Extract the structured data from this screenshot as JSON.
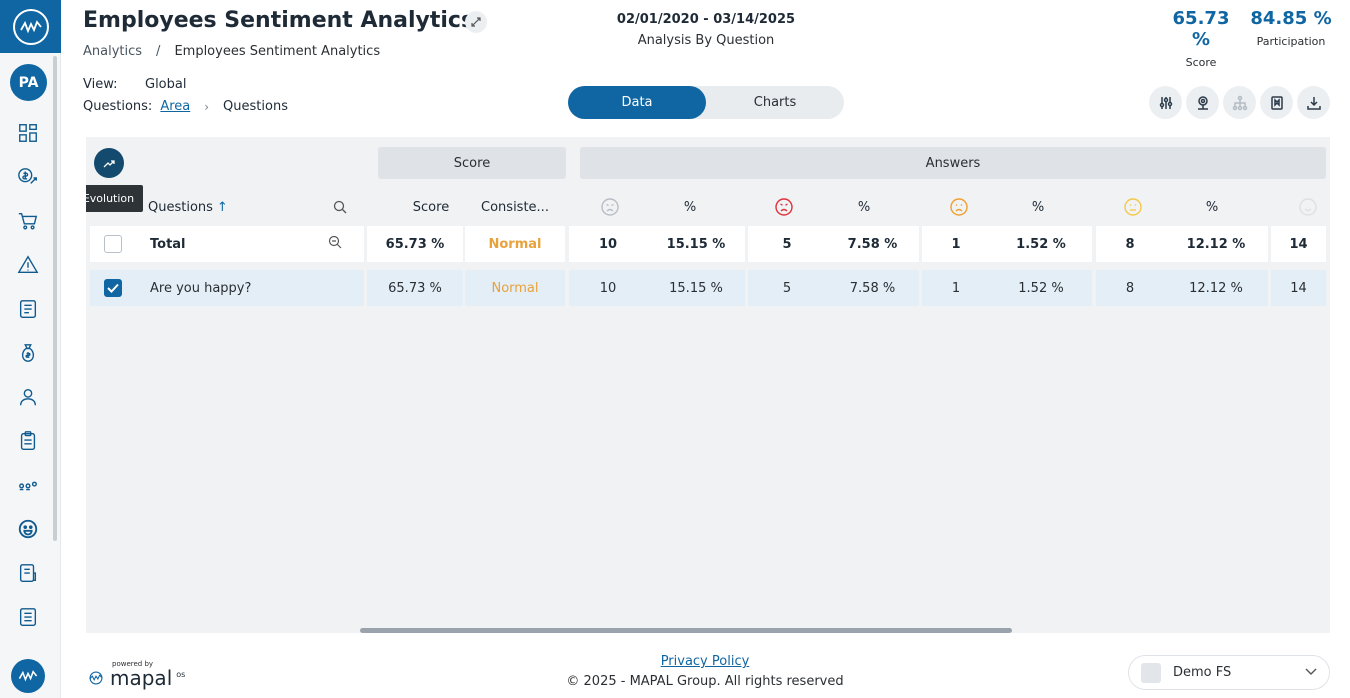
{
  "sidebar": {
    "avatar": "PA",
    "items": [
      "dashboard-icon",
      "sales-icon",
      "cart-icon",
      "alert-icon",
      "checklist-icon",
      "money-bag-icon",
      "user-icon",
      "clipboard-icon",
      "training-icon",
      "smiley-icon",
      "report-icon",
      "document-icon"
    ]
  },
  "header": {
    "title": "Employees Sentiment Analytics",
    "breadcrumb": [
      "Analytics",
      "/",
      "Employees Sentiment Analytics"
    ],
    "date_range": "02/01/2020 - 03/14/2025",
    "subtitle": "Analysis By Question",
    "kpis": [
      {
        "value": "65.73 %",
        "label": "Score"
      },
      {
        "value": "84.85 %",
        "label": "Participation"
      }
    ]
  },
  "filters": {
    "view_label": "View:",
    "view_value": "Global",
    "questions_label": "Questions:",
    "questions_link": "Area",
    "questions_current": "Questions"
  },
  "toggle": {
    "data": "Data",
    "charts": "Charts",
    "active": "Data"
  },
  "toolbar": [
    "filters-icon",
    "location-icon",
    "hierarchy-icon",
    "bookmark-icon",
    "download-icon"
  ],
  "table": {
    "groups": {
      "score": "Score",
      "answers": "Answers"
    },
    "tooltip": "Evolution",
    "headers": {
      "questions": "Questions",
      "sort_arrow": "↑",
      "score": "Score",
      "consistency": "Consiste...",
      "pct": "%"
    },
    "total": {
      "label": "Total",
      "score": "65.73 %",
      "consistency": "Normal",
      "cols": [
        "10",
        "15.15 %",
        "5",
        "7.58 %",
        "1",
        "1.52 %",
        "8",
        "12.12 %",
        "14"
      ]
    },
    "rows": [
      {
        "label": "Are you happy?",
        "checked": true,
        "score": "65.73 %",
        "consistency": "Normal",
        "cols": [
          "10",
          "15.15 %",
          "5",
          "7.58 %",
          "1",
          "1.52 %",
          "8",
          "12.12 %",
          "14"
        ]
      }
    ]
  },
  "footer": {
    "powered_by": "powered by",
    "brand": "mapal",
    "brand_suffix": "os",
    "privacy": "Privacy Policy",
    "copyright": "© 2025 - MAPAL Group. All rights reserved",
    "company": "Demo FS"
  },
  "colors": {
    "primary": "#0f66a3",
    "normal": "#e8a23c",
    "angry": "#e0323a",
    "sad": "#f0a030",
    "neutral": "#f5c84a"
  }
}
